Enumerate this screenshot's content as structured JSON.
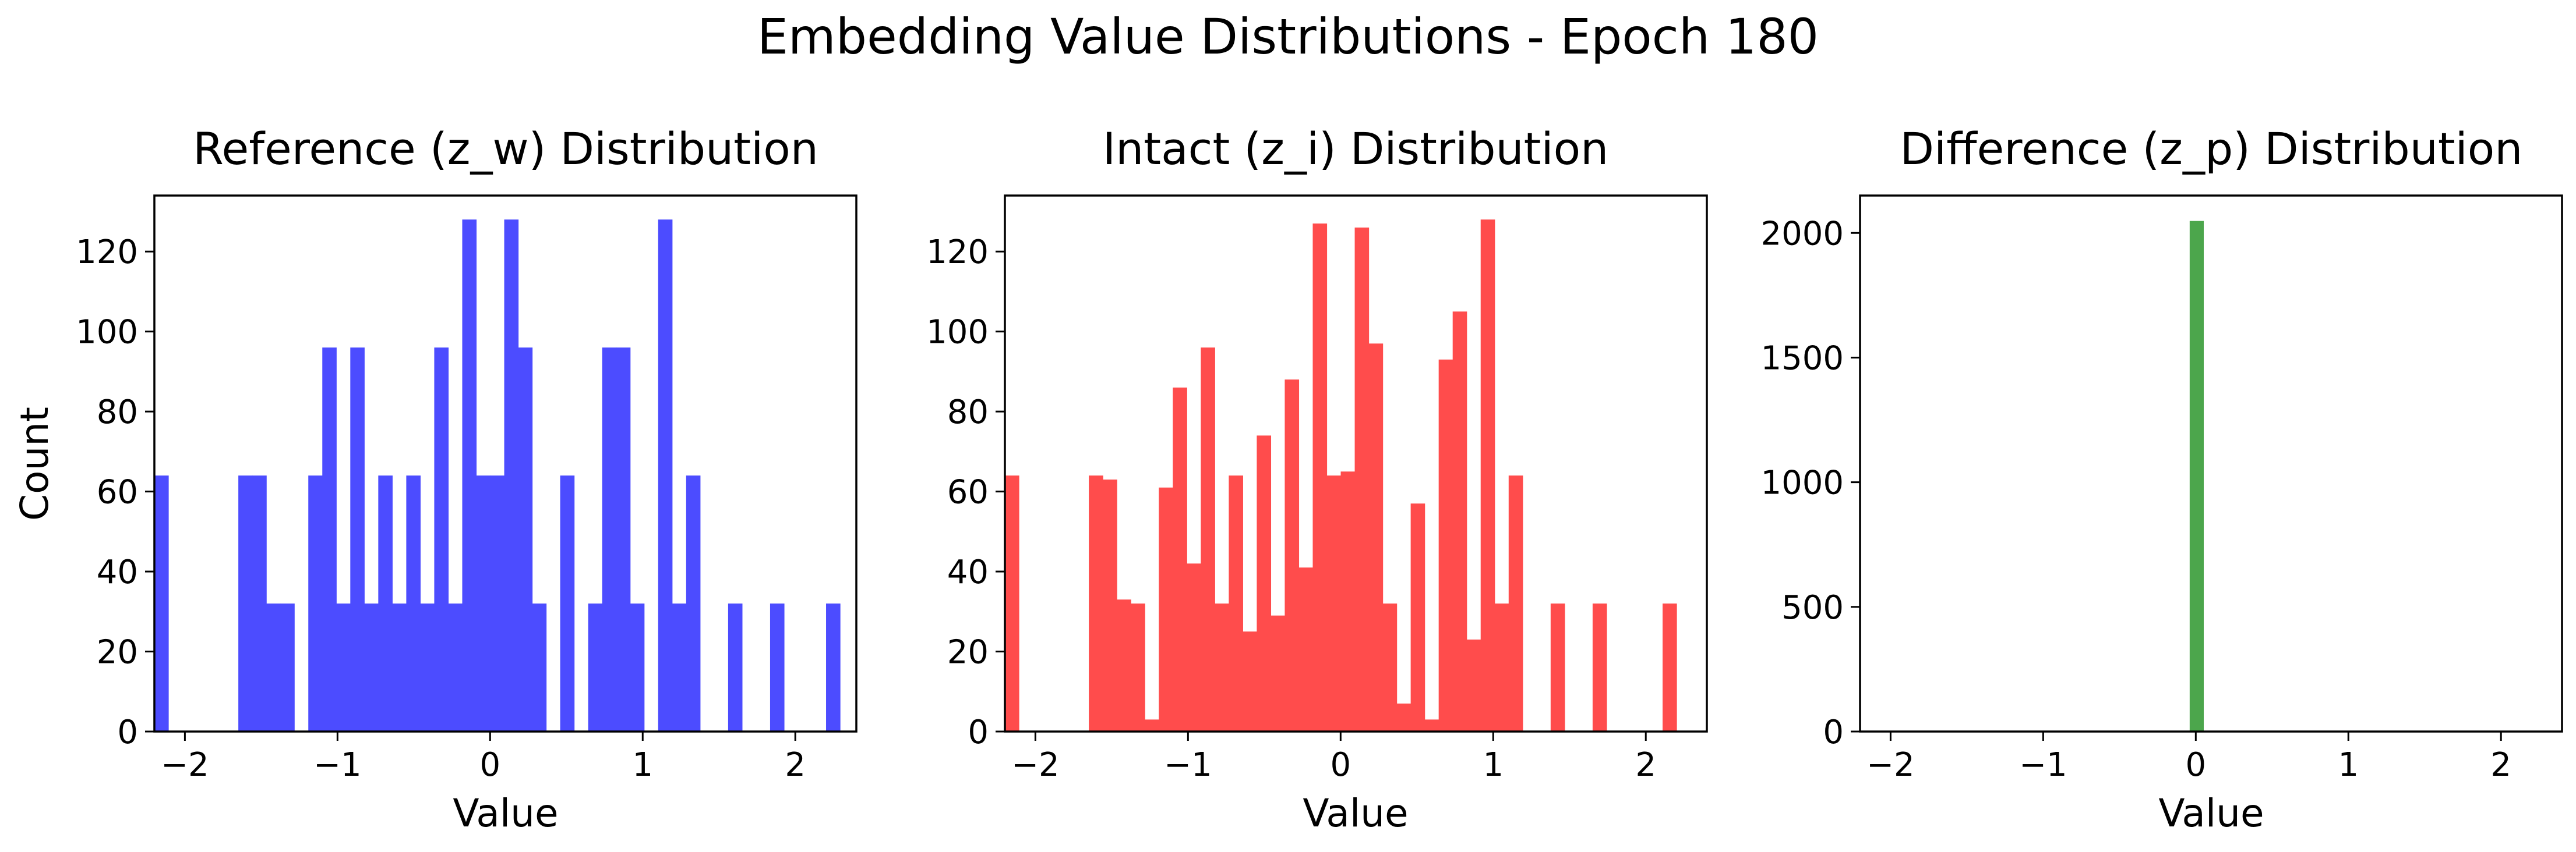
{
  "figure": {
    "title": "Embedding Value Distributions - Epoch 180"
  },
  "chart_data": [
    {
      "type": "bar",
      "title": "Reference (z_w) Distribution",
      "xlabel": "Value",
      "ylabel": "Count",
      "xlim": [
        -2.2,
        2.4
      ],
      "ylim": [
        0,
        134
      ],
      "xticks": [
        -2,
        -1,
        0,
        1,
        2
      ],
      "xtick_labels": [
        "−2",
        "−1",
        "0",
        "1",
        "2"
      ],
      "yticks": [
        0,
        20,
        40,
        60,
        80,
        100,
        120
      ],
      "ytick_labels": [
        "0",
        "20",
        "40",
        "60",
        "80",
        "100",
        "120"
      ],
      "color": "#4c4cff",
      "bin_start": -2.2,
      "bin_width": 0.0917,
      "values": [
        64,
        0,
        0,
        0,
        0,
        0,
        64,
        64,
        32,
        32,
        0,
        64,
        96,
        32,
        96,
        32,
        64,
        32,
        64,
        32,
        96,
        32,
        128,
        64,
        64,
        128,
        96,
        32,
        0,
        64,
        0,
        32,
        96,
        96,
        32,
        0,
        128,
        32,
        64,
        0,
        0,
        32,
        0,
        0,
        32,
        0,
        0,
        0,
        32,
        0
      ]
    },
    {
      "type": "bar",
      "title": "Intact (z_i) Distribution",
      "xlabel": "Value",
      "ylabel": "",
      "xlim": [
        -2.2,
        2.4
      ],
      "ylim": [
        0,
        134
      ],
      "xticks": [
        -2,
        -1,
        0,
        1,
        2
      ],
      "xtick_labels": [
        "−2",
        "−1",
        "0",
        "1",
        "2"
      ],
      "yticks": [
        0,
        20,
        40,
        60,
        80,
        100,
        120
      ],
      "ytick_labels": [
        "0",
        "20",
        "40",
        "60",
        "80",
        "100",
        "120"
      ],
      "color": "#ff4c4c",
      "bin_start": -2.2,
      "bin_width": 0.0917,
      "values": [
        64,
        0,
        0,
        0,
        0,
        0,
        64,
        63,
        33,
        32,
        3,
        61,
        86,
        42,
        96,
        32,
        64,
        25,
        74,
        29,
        88,
        41,
        127,
        64,
        65,
        126,
        97,
        32,
        7,
        57,
        3,
        93,
        105,
        23,
        128,
        32,
        64,
        0,
        0,
        32,
        0,
        0,
        32,
        0,
        0,
        0,
        0,
        32,
        0,
        0
      ]
    },
    {
      "type": "bar",
      "title": "Difference (z_p) Distribution",
      "xlabel": "Value",
      "ylabel": "",
      "xlim": [
        -2.2,
        2.4
      ],
      "ylim": [
        0,
        2150
      ],
      "xticks": [
        -2,
        -1,
        0,
        1,
        2
      ],
      "xtick_labels": [
        "−2",
        "−1",
        "0",
        "1",
        "2"
      ],
      "yticks": [
        0,
        500,
        1000,
        1500,
        2000
      ],
      "ytick_labels": [
        "0",
        "500",
        "1000",
        "1500",
        "2000"
      ],
      "color": "#4ca64c",
      "bin_start": -0.04,
      "bin_width": 0.09,
      "values": [
        2048
      ]
    }
  ]
}
